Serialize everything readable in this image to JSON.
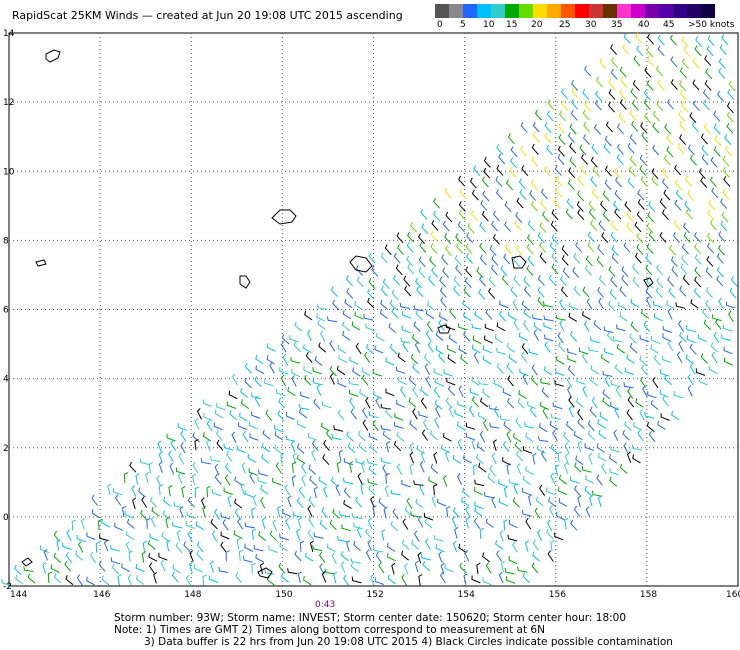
{
  "title": "RapidScat 25KM Winds — created at Jun 20 19:08 UTC 2015 ascending",
  "scale": {
    "colors": [
      "#555555",
      "#888888",
      "#2266ff",
      "#00bfff",
      "#33cccc",
      "#00aa00",
      "#66dd00",
      "#ffdd00",
      "#ffaa00",
      "#ff5500",
      "#ff0000",
      "#cc3333",
      "#663300",
      "#ff33cc",
      "#cc00cc",
      "#7700aa",
      "#5500aa",
      "#330088",
      "#220066",
      "#110044"
    ],
    "labels": [
      "0",
      "5",
      "10",
      "15",
      "20",
      "25",
      "30",
      "35",
      "40",
      "45",
      ">50 knots"
    ]
  },
  "axes": {
    "x_labels": [
      "144",
      "146",
      "148",
      "150",
      "152",
      "154",
      "156",
      "158",
      "160"
    ],
    "y_labels": [
      "14",
      "12",
      "10",
      "8",
      "6",
      "4",
      "2",
      "0",
      "-2"
    ]
  },
  "time_label": "0:43",
  "footer": {
    "line1": "Storm number: 93W;   Storm name: INVEST;   Storm center date: 150620;   Storm center hour: 18:00",
    "line2": "Note: 1) Times are GMT  2) Times along bottom correspond to measurement at 6N",
    "line3": "3) Data buffer is 22 hrs from Jun 20 19:08 UTC 2015   4) Black Circles indicate possible contamination"
  }
}
